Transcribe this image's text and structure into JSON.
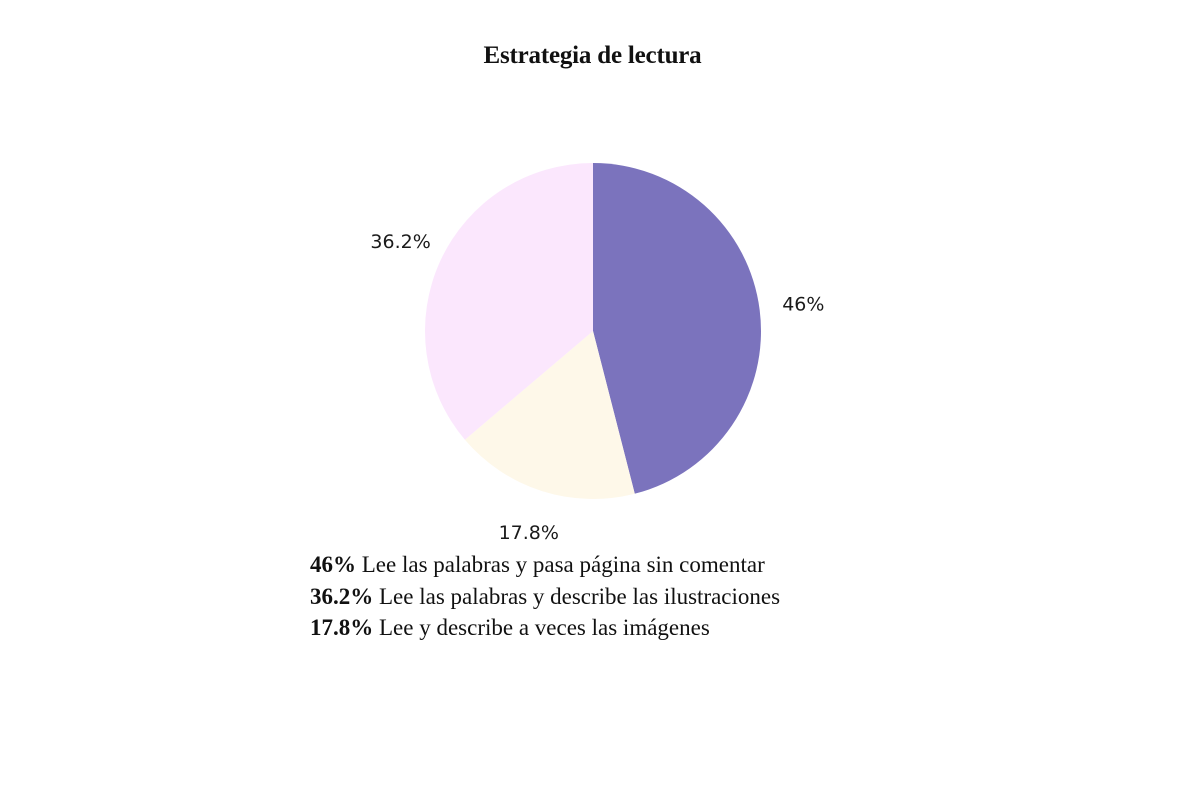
{
  "chart_data": {
    "type": "pie",
    "title": "Estrategia de lectura",
    "slices": [
      {
        "label": "46%",
        "value": 46.0,
        "color": "#7B73BD",
        "description": "Lee las palabras y pasa página sin comentar"
      },
      {
        "label": "17.8%",
        "value": 17.8,
        "color": "#FEF8E9",
        "description": "Lee y describe a veces las imágenes"
      },
      {
        "label": "36.2%",
        "value": 36.2,
        "color": "#FBE7FD",
        "description": "Lee las palabras y describe las ilustraciones"
      }
    ],
    "legend": [
      {
        "pct": "46%",
        "text": " Lee las palabras y pasa página sin comentar"
      },
      {
        "pct": "36.2%",
        "text": " Lee las palabras y describe las ilustraciones"
      },
      {
        "pct": "17.8%",
        "text": " Lee y describe a veces las imágenes"
      }
    ]
  }
}
